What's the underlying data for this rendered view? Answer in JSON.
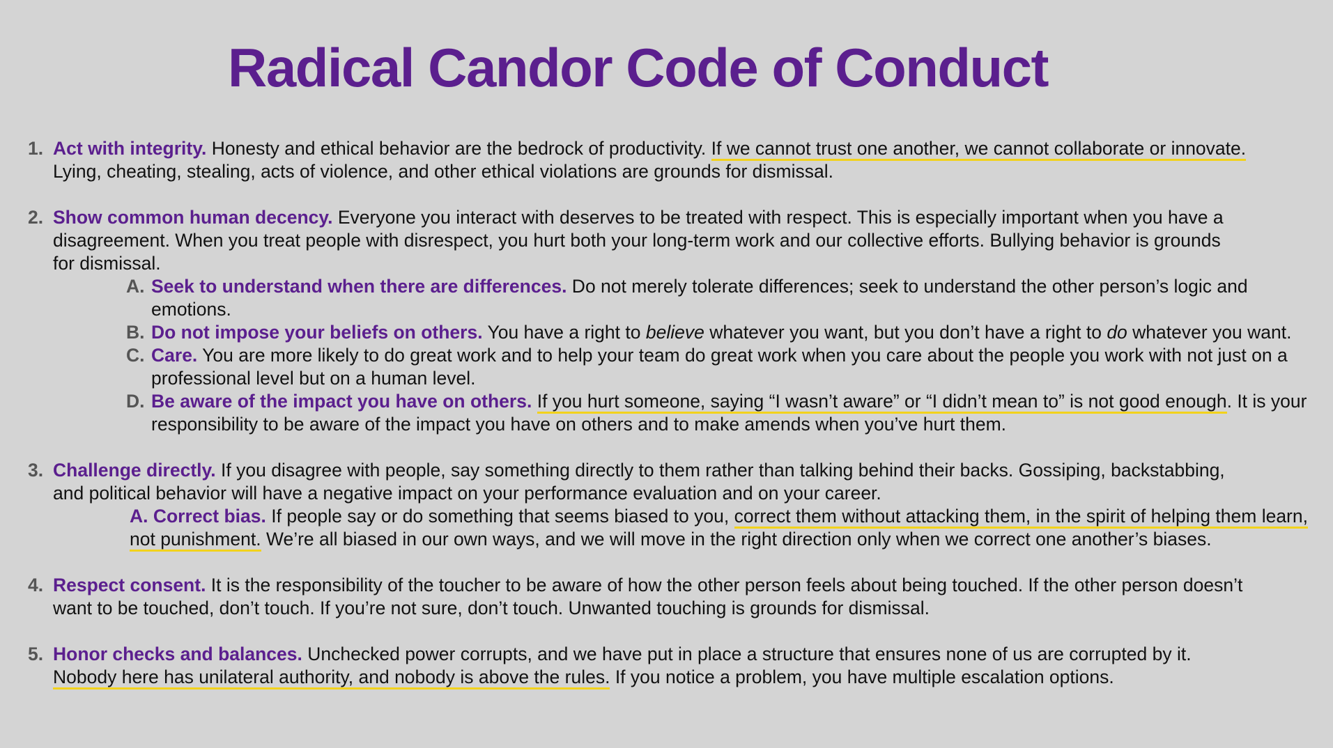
{
  "title": "Radical Candor Code of Conduct",
  "colors": {
    "heading": "#5b1f8e",
    "highlight": "#f2d21b",
    "background": "#d4d4d4"
  },
  "items": [
    {
      "num": "1.",
      "heading": "Act with integrity.",
      "text_before": " Honesty and ethical behavior are the bedrock of productivity. ",
      "highlight": "If we cannot trust one another, we cannot collaborate or innovate.",
      "text_after": " Lying, cheating, stealing, acts of violence, and other ethical violations are grounds for dismissal."
    },
    {
      "num": "2.",
      "heading": "Show common human decency.",
      "text": " Everyone you interact with deserves to be treated with respect. This is especially important when you have a disagreement. When you treat people with disrespect, you hurt both your long-term work and our collective efforts. Bullying behavior is grounds for dismissal.",
      "subs": [
        {
          "letter": "A.",
          "heading": "Seek to understand when there are differences.",
          "text": " Do not merely tolerate differences; seek to understand the other person’s logic and emotions."
        },
        {
          "letter": "B.",
          "heading": "Do not impose your beliefs on others.",
          "text_1": " You have a right to ",
          "em_1": "believe",
          "text_2": " whatever you want, but you don’t have a right to ",
          "em_2": "do",
          "text_3": " whatever you want."
        },
        {
          "letter": "C.",
          "heading": "Care.",
          "text": " You are more likely to do great work and to help your team do great work when you care about the people you work with not just on a professional level but on a human level."
        },
        {
          "letter": "D.",
          "heading": "Be aware of the impact you have on others.",
          "text_before": " ",
          "highlight": "If you hurt someone, saying “I wasn’t aware” or “I didn’t mean to” is not good enough",
          "text_after": ". It is your responsibility to be aware of the impact you have on others and to make amends when you’ve hurt them."
        }
      ]
    },
    {
      "num": "3.",
      "heading": "Challenge directly.",
      "text": " If you disagree with people, say something directly to them rather than talking behind their backs. Gossiping, backstabbing, and political behavior will have a negative impact on your performance evaluation and on your career.",
      "sub": {
        "heading": "A. Correct bias.",
        "text_before": " If people say or do something that seems biased to you, ",
        "highlight": "correct them without attacking them, in the spirit of helping them learn, not punishment.",
        "text_after": " We’re all biased in our own ways, and we will move in the right direction only when we correct one another’s biases."
      }
    },
    {
      "num": "4.",
      "heading": "Respect consent.",
      "text": " It is the responsibility of the toucher to be aware of how the other person feels about being touched. If the other person doesn’t want to be touched, don’t touch. If you’re not sure, don’t touch. Unwanted touching is grounds for dismissal."
    },
    {
      "num": "5.",
      "heading": "Honor checks and balances.",
      "text_before": " Unchecked power corrupts, and we have put in place a structure that ensures none of us are corrupted by it. ",
      "highlight": "Nobody here has unilateral authority, and nobody is above the rules.",
      "text_after": " If you notice a problem, you have multiple escalation options."
    }
  ]
}
